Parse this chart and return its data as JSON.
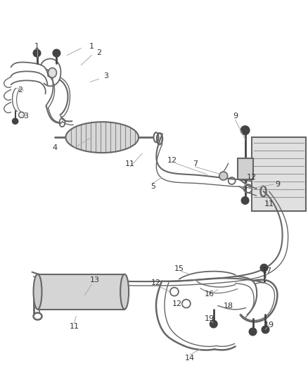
{
  "bg_color": "#ffffff",
  "line_color": "#666666",
  "dark_color": "#444444",
  "fig_width": 4.39,
  "fig_height": 5.33,
  "dpi": 100
}
